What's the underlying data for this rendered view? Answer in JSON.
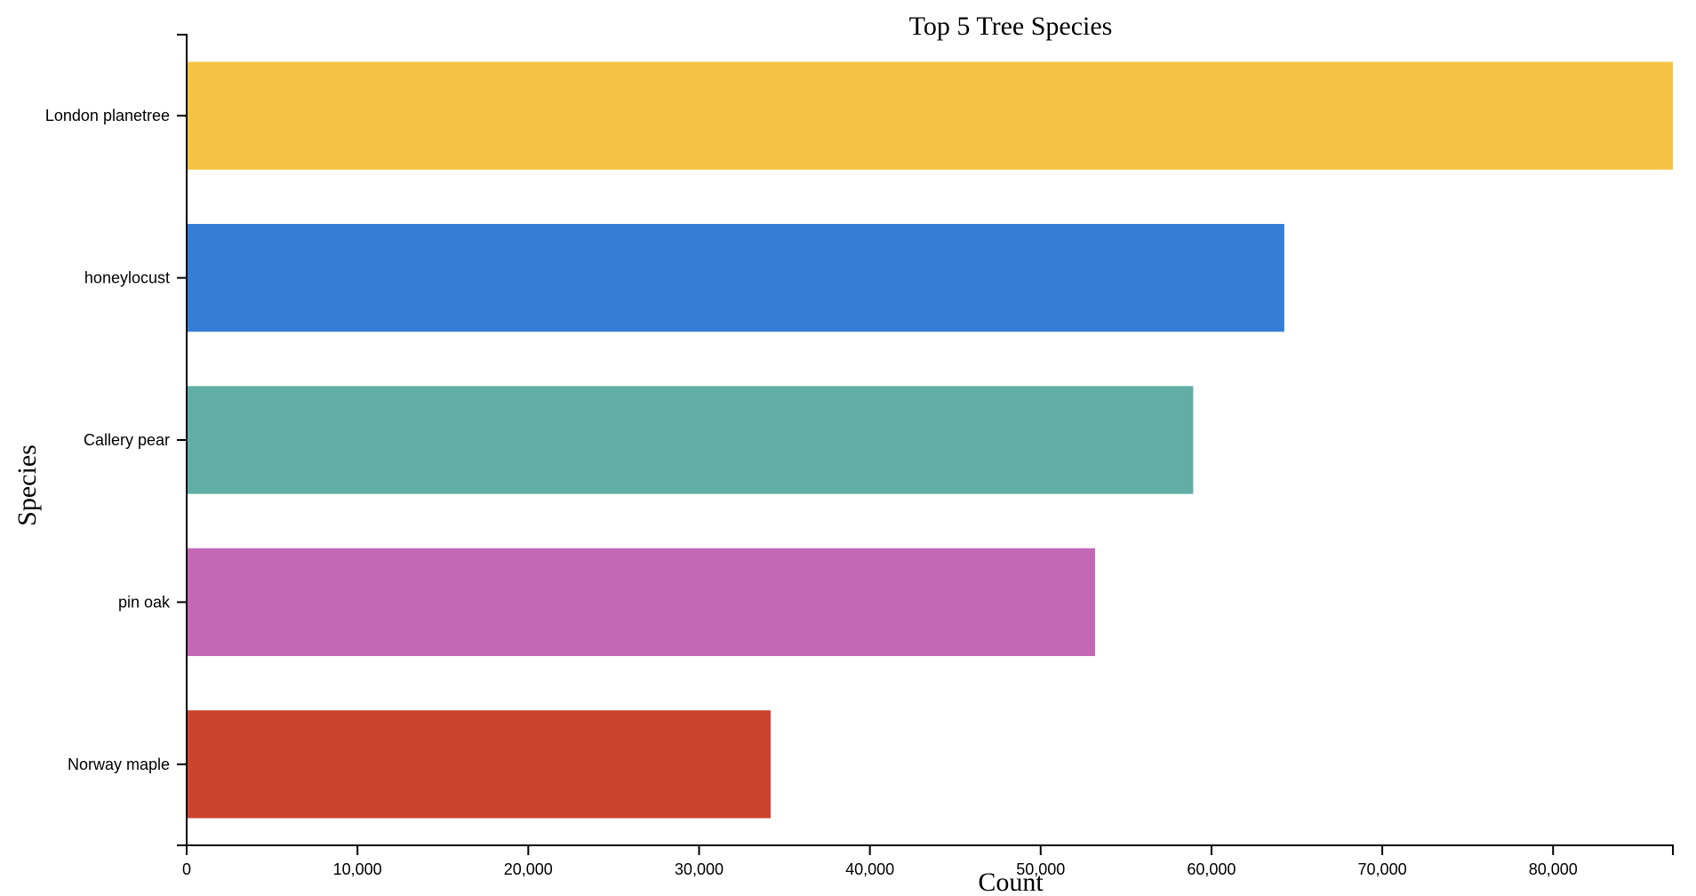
{
  "chart_data": {
    "type": "bar",
    "orientation": "horizontal",
    "title": "Top 5 Tree Species",
    "xlabel": "Count",
    "ylabel": "Species",
    "categories": [
      "London planetree",
      "honeylocust",
      "Callery pear",
      "pin oak",
      "Norway maple"
    ],
    "values": [
      87014,
      64263,
      58931,
      53185,
      34189
    ],
    "colors": [
      "#f5c344",
      "#357ed8",
      "#62aea6",
      "#c468b5",
      "#cc442f"
    ],
    "xlim": [
      0,
      87014
    ],
    "xticks": [
      0,
      10000,
      20000,
      30000,
      40000,
      50000,
      60000,
      70000,
      80000
    ],
    "xtick_labels": [
      "0",
      "10,000",
      "20,000",
      "30,000",
      "40,000",
      "50,000",
      "60,000",
      "70,000",
      "80,000"
    ],
    "grid": false,
    "legend": "none"
  }
}
